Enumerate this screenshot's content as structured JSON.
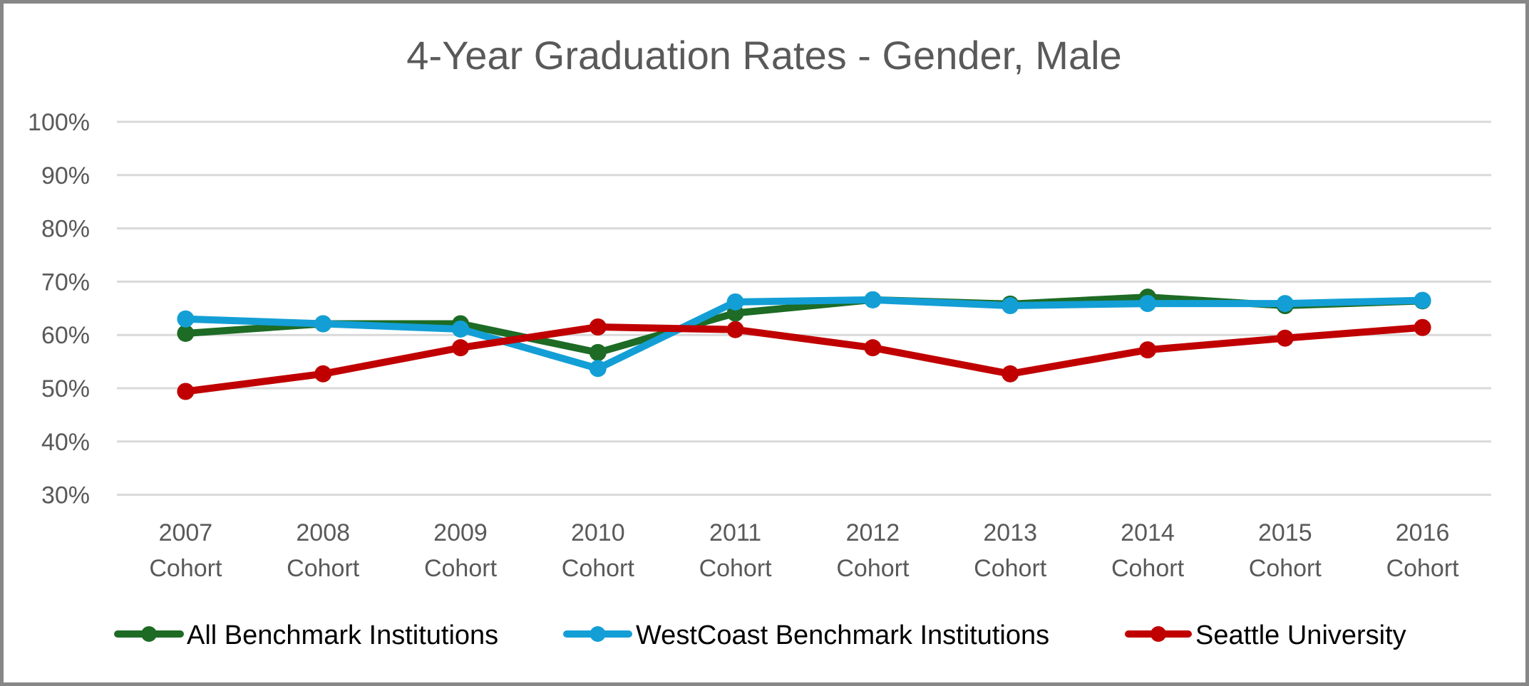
{
  "chart_data": {
    "type": "line",
    "title": "4-Year Graduation Rates - Gender, Male",
    "xlabel": "",
    "ylabel": "",
    "ylim": [
      30,
      100
    ],
    "yticks": [
      100,
      90,
      80,
      70,
      60,
      50,
      40,
      30
    ],
    "ytick_labels": [
      "100%",
      "90%",
      "80%",
      "70%",
      "60%",
      "50%",
      "40%",
      "30%"
    ],
    "categories": [
      [
        "2007",
        "Cohort"
      ],
      [
        "2008",
        "Cohort"
      ],
      [
        "2009",
        "Cohort"
      ],
      [
        "2010",
        "Cohort"
      ],
      [
        "2011",
        "Cohort"
      ],
      [
        "2012",
        "Cohort"
      ],
      [
        "2013",
        "Cohort"
      ],
      [
        "2014",
        "Cohort"
      ],
      [
        "2015",
        "Cohort"
      ],
      [
        "2016",
        "Cohort"
      ]
    ],
    "grid": "horizontal",
    "legend_position": "bottom",
    "series": [
      {
        "name": "All Benchmark Institutions",
        "color": "#1d6b25",
        "values": [
          60.3,
          62.1,
          62.1,
          56.7,
          64.1,
          66.6,
          65.8,
          67.1,
          65.5,
          66.4
        ]
      },
      {
        "name": "WestCoast Benchmark Institutions",
        "color": "#139fd6",
        "values": [
          63.0,
          62.1,
          61.1,
          53.7,
          66.2,
          66.6,
          65.5,
          65.9,
          65.9,
          66.5
        ]
      },
      {
        "name": "Seattle University",
        "color": "#c00000",
        "values": [
          49.4,
          52.7,
          57.6,
          61.5,
          61.0,
          57.6,
          52.7,
          57.2,
          59.4,
          61.4
        ]
      }
    ]
  },
  "colors": {
    "text": "#595959",
    "gridline": "#d9d9d9",
    "border": "#878787"
  }
}
